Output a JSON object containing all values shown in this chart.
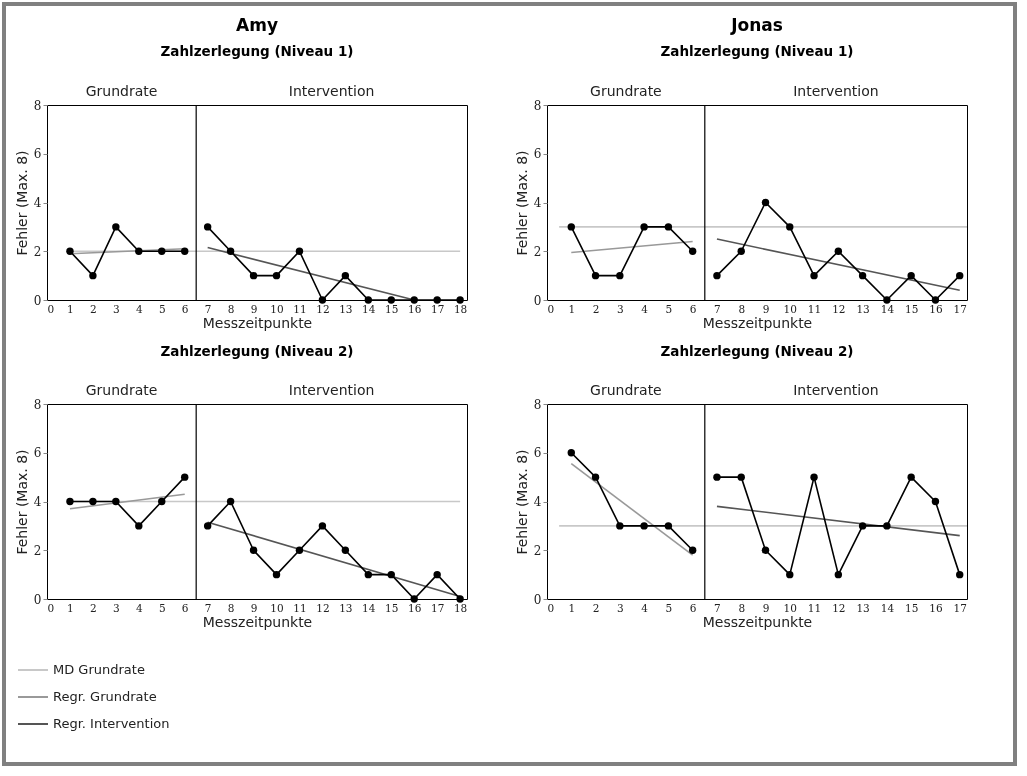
{
  "chart_data": [
    {
      "type": "line",
      "title": "Amy",
      "subtitle": "Zahlzerlegung (Niveau 1)",
      "xlabel": "Messzeitpunkte",
      "ylabel": "Fehler (Max. 8)",
      "annotations": [
        "Grundrate",
        "Intervention"
      ],
      "xlim": [
        0,
        18.3
      ],
      "xticks": [
        0,
        1,
        2,
        3,
        4,
        5,
        6,
        7,
        8,
        9,
        10,
        11,
        12,
        13,
        14,
        15,
        16,
        17,
        18
      ],
      "ylim": [
        0,
        8
      ],
      "yticks": [
        0,
        2,
        4,
        6,
        8
      ],
      "grid": false,
      "legend": false,
      "ref_lines": [
        {
          "axis": "x",
          "value": 6.5,
          "color": "#000000"
        }
      ],
      "series": [
        {
          "color": "#c8c8c8",
          "x": [
            1,
            18
          ],
          "values": [
            2,
            2
          ],
          "marker": "none"
        },
        {
          "color": "#999999",
          "x": [
            1,
            6
          ],
          "values": [
            1.9,
            2.1
          ],
          "marker": "none"
        },
        {
          "color": "#555555",
          "x": [
            7,
            16
          ],
          "values": [
            2.15,
            0
          ],
          "marker": "none"
        },
        {
          "color": "#000000",
          "x": [
            1,
            2,
            3,
            4,
            5,
            6
          ],
          "values": [
            2,
            1,
            3,
            2,
            2,
            2
          ],
          "marker": "circle"
        },
        {
          "color": "#000000",
          "x": [
            7,
            8,
            9,
            10,
            11,
            12,
            13,
            14,
            15,
            16,
            17,
            18
          ],
          "values": [
            3,
            2,
            1,
            1,
            2,
            0,
            1,
            0,
            0,
            0,
            0,
            0
          ],
          "marker": "circle"
        }
      ]
    },
    {
      "type": "line",
      "title": "Jonas",
      "subtitle": "Zahlzerlegung (Niveau 1)",
      "xlabel": "Messzeitpunkte",
      "ylabel": "Fehler (Max. 8)",
      "annotations": [
        "Grundrate",
        "Intervention"
      ],
      "xlim": [
        0,
        17.3
      ],
      "xticks": [
        0,
        1,
        2,
        3,
        4,
        5,
        6,
        7,
        8,
        9,
        10,
        11,
        12,
        13,
        14,
        15,
        16,
        17
      ],
      "ylim": [
        0,
        8
      ],
      "yticks": [
        0,
        2,
        4,
        6,
        8
      ],
      "grid": false,
      "legend": false,
      "ref_lines": [
        {
          "axis": "x",
          "value": 6.5,
          "color": "#000000"
        }
      ],
      "series": [
        {
          "color": "#c8c8c8",
          "x": [
            0.5,
            17.3
          ],
          "values": [
            3,
            3
          ],
          "marker": "none"
        },
        {
          "color": "#999999",
          "x": [
            1,
            6
          ],
          "values": [
            1.95,
            2.4
          ],
          "marker": "none"
        },
        {
          "color": "#555555",
          "x": [
            7,
            17
          ],
          "values": [
            2.5,
            0.4
          ],
          "marker": "none"
        },
        {
          "color": "#000000",
          "x": [
            1,
            2,
            3,
            4,
            5,
            6
          ],
          "values": [
            3,
            1,
            1,
            3,
            3,
            2
          ],
          "marker": "circle"
        },
        {
          "color": "#000000",
          "x": [
            7,
            8,
            9,
            10,
            11,
            12,
            13,
            14,
            15,
            16,
            17
          ],
          "values": [
            1,
            2,
            4,
            3,
            1,
            2,
            1,
            0,
            1,
            0,
            1
          ],
          "marker": "circle"
        }
      ]
    },
    {
      "type": "line",
      "title": "Zahlzerlegung (Niveau 2)",
      "xlabel": "Messzeitpunkte",
      "ylabel": "Fehler (Max. 8)",
      "annotations": [
        "Grundrate",
        "Intervention"
      ],
      "xlim": [
        0,
        18.3
      ],
      "xticks": [
        0,
        1,
        2,
        3,
        4,
        5,
        6,
        7,
        8,
        9,
        10,
        11,
        12,
        13,
        14,
        15,
        16,
        17,
        18
      ],
      "ylim": [
        0,
        8
      ],
      "yticks": [
        0,
        2,
        4,
        6,
        8
      ],
      "grid": false,
      "legend": "bottom left",
      "ref_lines": [
        {
          "axis": "x",
          "value": 6.5,
          "color": "#000000"
        }
      ],
      "series": [
        {
          "name": "MD Grundrate",
          "color": "#c8c8c8",
          "x": [
            1,
            18
          ],
          "values": [
            4,
            4
          ],
          "marker": "none"
        },
        {
          "name": "Regr. Grundrate",
          "color": "#999999",
          "x": [
            1,
            6
          ],
          "values": [
            3.7,
            4.3
          ],
          "marker": "none"
        },
        {
          "name": "Regr. Intervention",
          "color": "#555555",
          "x": [
            7,
            18
          ],
          "values": [
            3.15,
            0.1
          ],
          "marker": "none"
        },
        {
          "color": "#000000",
          "x": [
            1,
            2,
            3,
            4,
            5,
            6
          ],
          "values": [
            4,
            4,
            4,
            3,
            4,
            5
          ],
          "marker": "circle"
        },
        {
          "color": "#000000",
          "x": [
            7,
            8,
            9,
            10,
            11,
            12,
            13,
            14,
            15,
            16,
            17,
            18
          ],
          "values": [
            3,
            4,
            2,
            1,
            2,
            3,
            2,
            1,
            1,
            0,
            1,
            0
          ],
          "marker": "circle"
        }
      ]
    },
    {
      "type": "line",
      "title": "Zahlzerlegung (Niveau 2)",
      "xlabel": "Messzeitpunkte",
      "ylabel": "Fehler (Max. 8)",
      "annotations": [
        "Grundrate",
        "Intervention"
      ],
      "xlim": [
        0,
        17.3
      ],
      "xticks": [
        0,
        1,
        2,
        3,
        4,
        5,
        6,
        7,
        8,
        9,
        10,
        11,
        12,
        13,
        14,
        15,
        16,
        17
      ],
      "ylim": [
        0,
        8
      ],
      "yticks": [
        0,
        2,
        4,
        6,
        8
      ],
      "grid": false,
      "legend": false,
      "ref_lines": [
        {
          "axis": "x",
          "value": 6.5,
          "color": "#000000"
        }
      ],
      "series": [
        {
          "color": "#c8c8c8",
          "x": [
            0.5,
            17.3
          ],
          "values": [
            3,
            3
          ],
          "marker": "none"
        },
        {
          "color": "#999999",
          "x": [
            1,
            6
          ],
          "values": [
            5.55,
            1.8
          ],
          "marker": "none"
        },
        {
          "color": "#555555",
          "x": [
            7,
            17
          ],
          "values": [
            3.8,
            2.6
          ],
          "marker": "none"
        },
        {
          "color": "#000000",
          "x": [
            1,
            2,
            3,
            4,
            5,
            6
          ],
          "values": [
            6,
            5,
            3,
            3,
            3,
            2
          ],
          "marker": "circle"
        },
        {
          "color": "#000000",
          "x": [
            7,
            8,
            9,
            10,
            11,
            12,
            13,
            14,
            15,
            16,
            17
          ],
          "values": [
            5,
            5,
            2,
            1,
            5,
            1,
            3,
            3,
            5,
            4,
            1
          ],
          "marker": "circle"
        }
      ]
    }
  ]
}
